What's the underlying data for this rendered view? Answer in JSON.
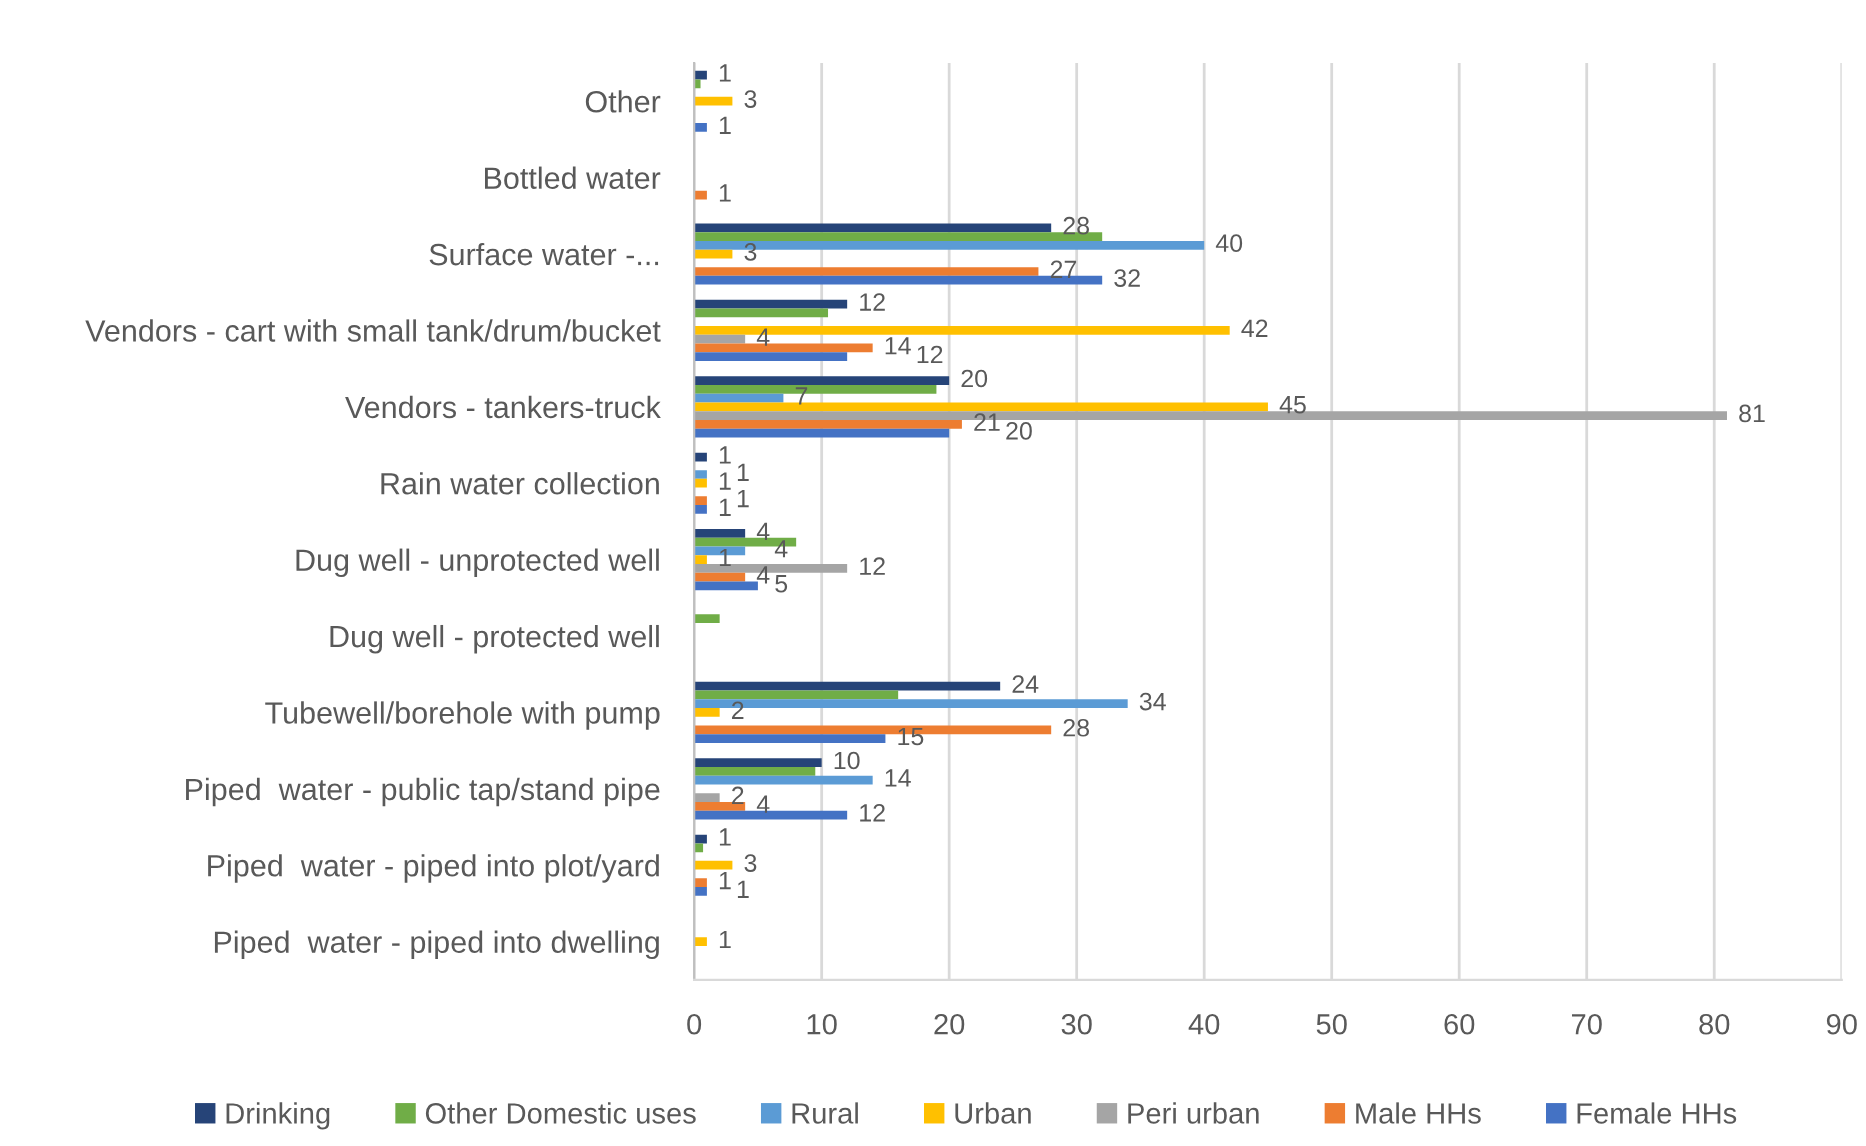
{
  "chart_data": {
    "type": "bar",
    "orientation": "horizontal",
    "categories": [
      "Other",
      "Bottled water",
      "Surface water -...",
      "Vendors - cart with small tank/drum/bucket",
      "Vendors - tankers-truck",
      "Rain water collection",
      "Dug well - unprotected well",
      "Dug well - protected well",
      "Tubewell/borehole with pump",
      "Piped  water - public tap/stand pipe",
      "Piped  water - piped into plot/yard",
      "Piped  water - piped into dwelling"
    ],
    "series": [
      {
        "name": "Drinking",
        "color": "#264478",
        "values": [
          1,
          null,
          28,
          12,
          20,
          1,
          4,
          null,
          24,
          10,
          1,
          null
        ],
        "value_labels": [
          "1",
          null,
          "28",
          "12",
          "20",
          "1",
          "4",
          null,
          "24",
          "10",
          "1",
          null
        ]
      },
      {
        "name": "Other Domestic uses",
        "color": "#70ad47",
        "values": [
          0.5,
          null,
          32,
          10.5,
          19,
          null,
          8,
          2,
          16,
          9.5,
          0.7,
          null
        ]
      },
      {
        "name": "Rural",
        "color": "#5b9bd5",
        "values": [
          null,
          null,
          40,
          null,
          7,
          1,
          4,
          null,
          34,
          14,
          null,
          null
        ],
        "value_labels": [
          null,
          null,
          "40",
          null,
          "7",
          "1",
          "4",
          null,
          "34",
          "14",
          null,
          null
        ]
      },
      {
        "name": "Urban",
        "color": "#ffc000",
        "values": [
          3,
          null,
          3,
          42,
          45,
          1,
          1,
          null,
          2,
          null,
          3,
          1
        ],
        "value_labels": [
          "3",
          null,
          "3",
          "42",
          "45",
          "1",
          "1",
          null,
          "2",
          null,
          "3",
          "1"
        ]
      },
      {
        "name": "Peri urban",
        "color": "#a5a5a5",
        "values": [
          null,
          null,
          null,
          4,
          81,
          null,
          12,
          null,
          null,
          2,
          null,
          null
        ],
        "value_labels": [
          null,
          null,
          null,
          "4",
          "81",
          null,
          "12",
          null,
          null,
          "2",
          null,
          null
        ]
      },
      {
        "name": "Male HHs",
        "color": "#ed7d31",
        "values": [
          null,
          1,
          27,
          14,
          21,
          1,
          4,
          null,
          28,
          4,
          1,
          null
        ],
        "value_labels": [
          null,
          "1",
          "27",
          "14",
          "21",
          "1",
          "4",
          null,
          "28",
          "4",
          "1",
          null
        ]
      },
      {
        "name": "Female HHs",
        "color": "#4472c4",
        "values": [
          1,
          null,
          32,
          12,
          20,
          1,
          5,
          null,
          15,
          12,
          1,
          null
        ],
        "value_labels": [
          "1",
          null,
          "32",
          "12",
          "20",
          "1",
          "5",
          null,
          "15",
          "12",
          "1",
          null
        ]
      }
    ],
    "xlim": [
      0,
      90
    ],
    "xticks": [
      0,
      10,
      20,
      30,
      40,
      50,
      60,
      70,
      80,
      90
    ],
    "grid": "x",
    "legend": "bottom"
  }
}
